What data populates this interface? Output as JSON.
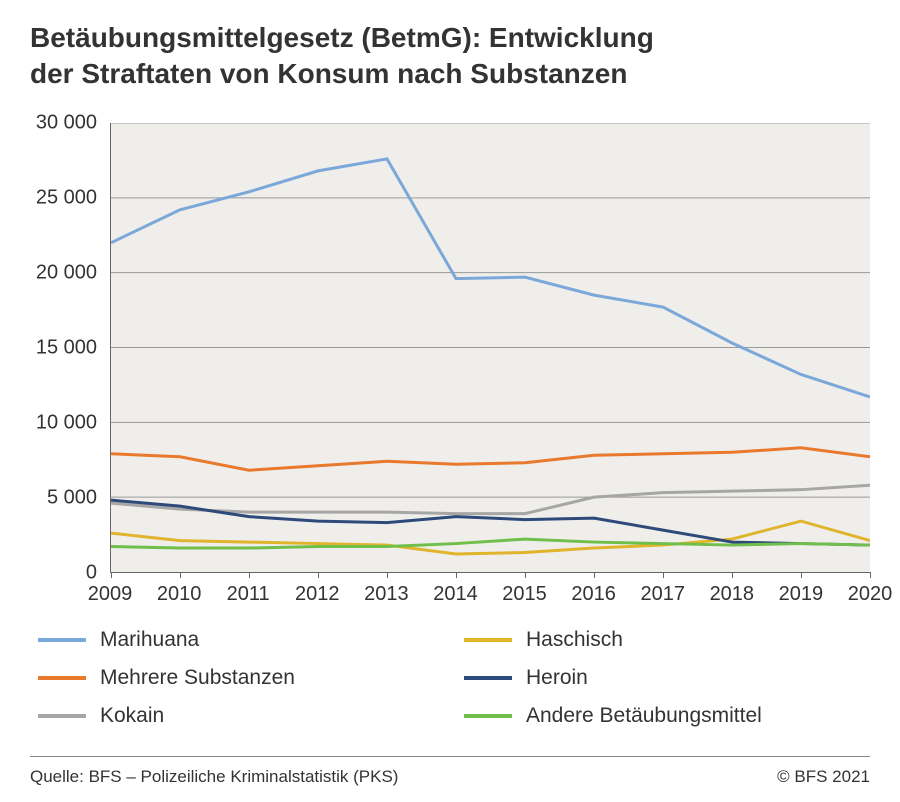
{
  "title_line1": "Betäubungsmittelgesetz (BetmG): Entwicklung",
  "title_line2": "der Straftaten von Konsum nach Substanzen",
  "chart": {
    "type": "line",
    "background_color": "#f0eeeb",
    "grid_color": "#999999",
    "axis_color": "#666666",
    "label_color": "#333333",
    "label_fontsize": 20,
    "years": [
      2009,
      2010,
      2011,
      2012,
      2013,
      2014,
      2015,
      2016,
      2017,
      2018,
      2019,
      2020
    ],
    "ylim": [
      0,
      30000
    ],
    "ytick_step": 5000,
    "yticks": [
      0,
      5000,
      10000,
      15000,
      20000,
      25000,
      30000
    ],
    "ytick_labels": [
      "0",
      "5 000",
      "10 000",
      "15 000",
      "20 000",
      "25 000",
      "30 000"
    ],
    "line_width": 3,
    "series": [
      {
        "name": "Marihuana",
        "color": "#7ba7d9",
        "values": [
          22000,
          24200,
          25400,
          26800,
          27600,
          19600,
          19700,
          18500,
          17700,
          15300,
          13200,
          11700
        ]
      },
      {
        "name": "Mehrere Substanzen",
        "color": "#e8792d",
        "values": [
          7900,
          7700,
          6800,
          7100,
          7400,
          7200,
          7300,
          7800,
          7900,
          8000,
          8300,
          7700
        ]
      },
      {
        "name": "Kokain",
        "color": "#a6a6a6",
        "values": [
          4600,
          4200,
          4000,
          4000,
          4000,
          3900,
          3900,
          5000,
          5300,
          5400,
          5500,
          5800
        ]
      },
      {
        "name": "Haschisch",
        "color": "#e0b42c",
        "values": [
          2600,
          2100,
          2000,
          1900,
          1800,
          1200,
          1300,
          1600,
          1800,
          2200,
          3400,
          2100
        ]
      },
      {
        "name": "Heroin",
        "color": "#2e4a7a",
        "values": [
          4800,
          4400,
          3700,
          3400,
          3300,
          3700,
          3500,
          3600,
          2800,
          2000,
          1900,
          1800
        ]
      },
      {
        "name": "Andere Betäubungsmittel",
        "color": "#6fbf4a",
        "values": [
          1700,
          1600,
          1600,
          1700,
          1700,
          1900,
          2200,
          2000,
          1900,
          1800,
          1900,
          1800
        ]
      }
    ]
  },
  "legend_order_left": [
    0,
    1,
    2
  ],
  "legend_order_right": [
    3,
    4,
    5
  ],
  "footer_left": "Quelle: BFS – Polizeiliche Kriminalstatistik (PKS)",
  "footer_right": "© BFS 2021"
}
